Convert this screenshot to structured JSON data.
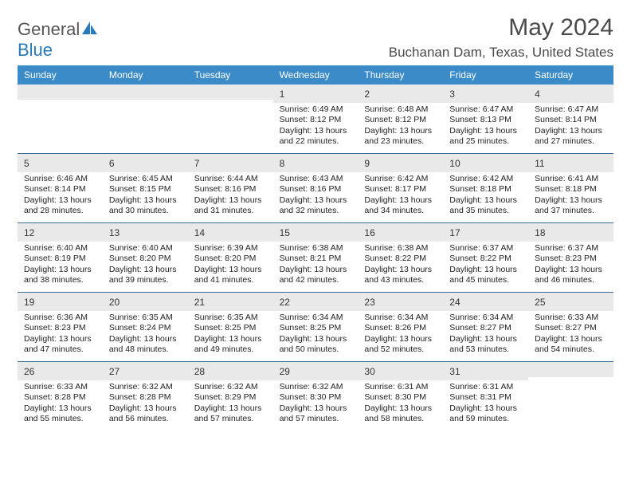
{
  "logo": {
    "text1": "General",
    "text2": "Blue"
  },
  "title": "May 2024",
  "location": "Buchanan Dam, Texas, United States",
  "colors": {
    "header_bg": "#3b8bc8",
    "daynum_bg": "#e9e9e9",
    "week_border": "#3b6a9a",
    "logo_blue": "#2a7ab9"
  },
  "dow": [
    "Sunday",
    "Monday",
    "Tuesday",
    "Wednesday",
    "Thursday",
    "Friday",
    "Saturday"
  ],
  "weeks": [
    [
      null,
      null,
      null,
      {
        "n": "1",
        "sunrise": "6:49 AM",
        "sunset": "8:12 PM",
        "daylight": "13 hours and 22 minutes."
      },
      {
        "n": "2",
        "sunrise": "6:48 AM",
        "sunset": "8:12 PM",
        "daylight": "13 hours and 23 minutes."
      },
      {
        "n": "3",
        "sunrise": "6:47 AM",
        "sunset": "8:13 PM",
        "daylight": "13 hours and 25 minutes."
      },
      {
        "n": "4",
        "sunrise": "6:47 AM",
        "sunset": "8:14 PM",
        "daylight": "13 hours and 27 minutes."
      }
    ],
    [
      {
        "n": "5",
        "sunrise": "6:46 AM",
        "sunset": "8:14 PM",
        "daylight": "13 hours and 28 minutes."
      },
      {
        "n": "6",
        "sunrise": "6:45 AM",
        "sunset": "8:15 PM",
        "daylight": "13 hours and 30 minutes."
      },
      {
        "n": "7",
        "sunrise": "6:44 AM",
        "sunset": "8:16 PM",
        "daylight": "13 hours and 31 minutes."
      },
      {
        "n": "8",
        "sunrise": "6:43 AM",
        "sunset": "8:16 PM",
        "daylight": "13 hours and 32 minutes."
      },
      {
        "n": "9",
        "sunrise": "6:42 AM",
        "sunset": "8:17 PM",
        "daylight": "13 hours and 34 minutes."
      },
      {
        "n": "10",
        "sunrise": "6:42 AM",
        "sunset": "8:18 PM",
        "daylight": "13 hours and 35 minutes."
      },
      {
        "n": "11",
        "sunrise": "6:41 AM",
        "sunset": "8:18 PM",
        "daylight": "13 hours and 37 minutes."
      }
    ],
    [
      {
        "n": "12",
        "sunrise": "6:40 AM",
        "sunset": "8:19 PM",
        "daylight": "13 hours and 38 minutes."
      },
      {
        "n": "13",
        "sunrise": "6:40 AM",
        "sunset": "8:20 PM",
        "daylight": "13 hours and 39 minutes."
      },
      {
        "n": "14",
        "sunrise": "6:39 AM",
        "sunset": "8:20 PM",
        "daylight": "13 hours and 41 minutes."
      },
      {
        "n": "15",
        "sunrise": "6:38 AM",
        "sunset": "8:21 PM",
        "daylight": "13 hours and 42 minutes."
      },
      {
        "n": "16",
        "sunrise": "6:38 AM",
        "sunset": "8:22 PM",
        "daylight": "13 hours and 43 minutes."
      },
      {
        "n": "17",
        "sunrise": "6:37 AM",
        "sunset": "8:22 PM",
        "daylight": "13 hours and 45 minutes."
      },
      {
        "n": "18",
        "sunrise": "6:37 AM",
        "sunset": "8:23 PM",
        "daylight": "13 hours and 46 minutes."
      }
    ],
    [
      {
        "n": "19",
        "sunrise": "6:36 AM",
        "sunset": "8:23 PM",
        "daylight": "13 hours and 47 minutes."
      },
      {
        "n": "20",
        "sunrise": "6:35 AM",
        "sunset": "8:24 PM",
        "daylight": "13 hours and 48 minutes."
      },
      {
        "n": "21",
        "sunrise": "6:35 AM",
        "sunset": "8:25 PM",
        "daylight": "13 hours and 49 minutes."
      },
      {
        "n": "22",
        "sunrise": "6:34 AM",
        "sunset": "8:25 PM",
        "daylight": "13 hours and 50 minutes."
      },
      {
        "n": "23",
        "sunrise": "6:34 AM",
        "sunset": "8:26 PM",
        "daylight": "13 hours and 52 minutes."
      },
      {
        "n": "24",
        "sunrise": "6:34 AM",
        "sunset": "8:27 PM",
        "daylight": "13 hours and 53 minutes."
      },
      {
        "n": "25",
        "sunrise": "6:33 AM",
        "sunset": "8:27 PM",
        "daylight": "13 hours and 54 minutes."
      }
    ],
    [
      {
        "n": "26",
        "sunrise": "6:33 AM",
        "sunset": "8:28 PM",
        "daylight": "13 hours and 55 minutes."
      },
      {
        "n": "27",
        "sunrise": "6:32 AM",
        "sunset": "8:28 PM",
        "daylight": "13 hours and 56 minutes."
      },
      {
        "n": "28",
        "sunrise": "6:32 AM",
        "sunset": "8:29 PM",
        "daylight": "13 hours and 57 minutes."
      },
      {
        "n": "29",
        "sunrise": "6:32 AM",
        "sunset": "8:30 PM",
        "daylight": "13 hours and 57 minutes."
      },
      {
        "n": "30",
        "sunrise": "6:31 AM",
        "sunset": "8:30 PM",
        "daylight": "13 hours and 58 minutes."
      },
      {
        "n": "31",
        "sunrise": "6:31 AM",
        "sunset": "8:31 PM",
        "daylight": "13 hours and 59 minutes."
      },
      null
    ]
  ],
  "labels": {
    "sunrise": "Sunrise:",
    "sunset": "Sunset:",
    "daylight": "Daylight:"
  }
}
